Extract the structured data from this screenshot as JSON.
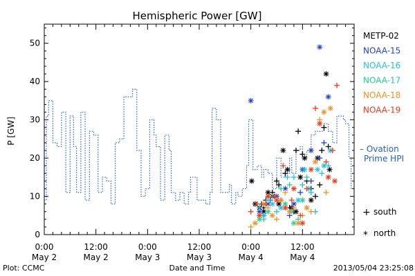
{
  "chart_data": {
    "type": "scatter",
    "title": "Hemispheric Power [GW]",
    "ylabel": "P [GW]",
    "xlabel": "Date and Time",
    "ylim": [
      0,
      55
    ],
    "yticks": [
      0,
      10,
      20,
      30,
      40,
      50
    ],
    "xlim_hours": [
      0,
      72
    ],
    "xticks": [
      {
        "hour": 0,
        "line1": "0:00",
        "line2": "May 2"
      },
      {
        "hour": 12,
        "line1": "12:00",
        "line2": "May 2"
      },
      {
        "hour": 24,
        "line1": "0:00",
        "line2": "May 3"
      },
      {
        "hour": 36,
        "line1": "12:00",
        "line2": "May 3"
      },
      {
        "hour": 48,
        "line1": "0:00",
        "line2": "May 4"
      },
      {
        "hour": 60,
        "line1": "12:00",
        "line2": "May 4"
      }
    ],
    "ovation": {
      "name": "Ovation Prime HPI",
      "label_line1": "– Ovation",
      "label_line2": "Prime HPI",
      "color": "#1f5fc8",
      "points": [
        [
          0,
          9
        ],
        [
          0.5,
          31
        ],
        [
          1,
          35
        ],
        [
          2,
          24
        ],
        [
          3,
          23
        ],
        [
          4,
          32
        ],
        [
          5,
          11
        ],
        [
          6,
          31
        ],
        [
          6.8,
          23
        ],
        [
          7.5,
          11
        ],
        [
          8.5,
          32
        ],
        [
          9.5,
          9
        ],
        [
          10.5,
          27
        ],
        [
          11.5,
          26
        ],
        [
          12.5,
          11
        ],
        [
          13.5,
          15
        ],
        [
          14.5,
          14
        ],
        [
          15.5,
          8
        ],
        [
          16.5,
          24
        ],
        [
          17.5,
          25
        ],
        [
          18.5,
          36
        ],
        [
          20.5,
          38
        ],
        [
          21.5,
          22
        ],
        [
          22.5,
          10
        ],
        [
          23.5,
          12
        ],
        [
          24.5,
          30
        ],
        [
          25.5,
          26
        ],
        [
          26,
          23
        ],
        [
          27,
          9
        ],
        [
          28,
          26
        ],
        [
          29,
          22
        ],
        [
          29.5,
          11
        ],
        [
          30.5,
          9
        ],
        [
          31.5,
          11
        ],
        [
          32.5,
          8
        ],
        [
          33.5,
          11
        ],
        [
          34,
          15
        ],
        [
          35.5,
          9
        ],
        [
          36.5,
          9
        ],
        [
          37.5,
          8
        ],
        [
          38.5,
          11
        ],
        [
          39,
          33
        ],
        [
          40,
          30
        ],
        [
          41,
          11
        ],
        [
          42,
          11
        ],
        [
          43,
          13
        ],
        [
          43.5,
          8
        ],
        [
          44.5,
          11
        ],
        [
          45,
          10
        ],
        [
          46,
          12
        ],
        [
          47,
          18
        ],
        [
          47.5,
          30
        ],
        [
          48.5,
          17
        ],
        [
          49.5,
          18
        ],
        [
          50.5,
          15
        ],
        [
          51,
          17
        ],
        [
          52,
          16
        ],
        [
          53,
          12
        ],
        [
          54,
          20
        ],
        [
          55,
          15
        ],
        [
          56,
          16
        ],
        [
          57,
          20
        ],
        [
          57.5,
          16
        ],
        [
          58.5,
          22
        ],
        [
          59.5,
          23
        ],
        [
          60,
          20
        ],
        [
          61,
          22
        ],
        [
          62,
          26
        ],
        [
          63,
          27
        ],
        [
          64,
          27
        ],
        [
          65,
          29
        ],
        [
          66,
          27
        ],
        [
          67,
          24
        ],
        [
          68,
          31
        ],
        [
          69.5,
          30
        ],
        [
          70,
          29
        ],
        [
          70.8,
          20
        ],
        [
          71.3,
          12
        ]
      ]
    },
    "series": [
      {
        "name": "METP-02",
        "color": "#000000",
        "south": [
          [
            50.5,
            8
          ],
          [
            51,
            7
          ],
          [
            51.5,
            9
          ],
          [
            52,
            10
          ],
          [
            53,
            11
          ],
          [
            54,
            14
          ],
          [
            54.5,
            13
          ],
          [
            56,
            16
          ],
          [
            57,
            7
          ],
          [
            58,
            6
          ],
          [
            58.5,
            22
          ],
          [
            59,
            27
          ],
          [
            60,
            21
          ],
          [
            61,
            14
          ],
          [
            62,
            12
          ],
          [
            63,
            10
          ],
          [
            64,
            13
          ],
          [
            64.5,
            22
          ],
          [
            65,
            28
          ],
          [
            66,
            23
          ]
        ],
        "north": [
          [
            48.2,
            14
          ],
          [
            49,
            8
          ],
          [
            50,
            7
          ],
          [
            51,
            6
          ],
          [
            52,
            11
          ],
          [
            53,
            10
          ],
          [
            54.5,
            8
          ],
          [
            55.5,
            22
          ],
          [
            56.5,
            17
          ],
          [
            57.5,
            7
          ],
          [
            58.5,
            6
          ],
          [
            59.5,
            15
          ],
          [
            60.5,
            20
          ],
          [
            62,
            9
          ],
          [
            63.5,
            20
          ],
          [
            65.5,
            42
          ],
          [
            66.3,
            17
          ]
        ]
      },
      {
        "name": "NOAA-15",
        "color": "#1f3fd0",
        "south": [
          [
            51,
            5
          ],
          [
            52.5,
            9
          ],
          [
            55,
            9
          ],
          [
            57,
            5
          ],
          [
            59.5,
            11
          ],
          [
            62,
            14
          ],
          [
            64,
            20
          ],
          [
            65,
            24
          ]
        ],
        "north": [
          [
            48,
            35
          ],
          [
            50,
            6
          ],
          [
            52,
            8
          ],
          [
            54,
            10
          ],
          [
            56,
            12
          ],
          [
            58,
            8
          ],
          [
            60,
            17
          ],
          [
            62,
            22
          ],
          [
            64,
            49
          ],
          [
            66,
            36
          ]
        ]
      },
      {
        "name": "NOAA-16",
        "color": "#20c0e0",
        "south": [
          [
            50,
            7
          ],
          [
            52,
            9
          ],
          [
            54,
            6
          ],
          [
            56.5,
            15
          ],
          [
            58,
            15
          ],
          [
            60,
            13
          ],
          [
            62,
            11
          ],
          [
            63,
            6
          ],
          [
            64.5,
            16
          ],
          [
            66,
            18
          ]
        ],
        "north": [
          [
            51,
            5
          ],
          [
            53,
            8
          ],
          [
            55,
            7
          ],
          [
            57.5,
            6
          ],
          [
            59,
            9
          ],
          [
            60.5,
            17
          ],
          [
            61.5,
            12
          ],
          [
            63.5,
            17
          ],
          [
            65,
            18
          ],
          [
            66.5,
            22
          ]
        ]
      },
      {
        "name": "NOAA-17",
        "color": "#20d090",
        "south": [
          [
            51,
            4
          ],
          [
            53,
            10
          ],
          [
            55,
            12
          ],
          [
            57,
            13
          ],
          [
            59,
            4
          ],
          [
            61,
            15
          ]
        ],
        "north": [
          [
            50,
            4
          ],
          [
            52,
            6
          ],
          [
            56,
            8
          ],
          [
            58,
            3
          ],
          [
            60,
            9
          ]
        ]
      },
      {
        "name": "NOAA-18",
        "color": "#f09020",
        "south": [
          [
            48,
            2
          ],
          [
            50,
            5
          ],
          [
            52,
            7
          ],
          [
            54,
            4
          ],
          [
            56,
            11
          ],
          [
            58,
            7
          ],
          [
            60,
            5
          ],
          [
            62,
            6
          ],
          [
            64,
            30
          ],
          [
            65.5,
            11
          ]
        ],
        "north": [
          [
            49,
            3
          ],
          [
            51,
            8
          ],
          [
            53,
            5
          ],
          [
            55,
            9
          ],
          [
            57,
            6
          ],
          [
            59,
            3
          ],
          [
            61,
            7
          ],
          [
            63,
            19
          ],
          [
            65,
            32
          ],
          [
            66.5,
            33
          ]
        ]
      },
      {
        "name": "NOAA-19",
        "color": "#f03818",
        "south": [
          [
            48,
            6
          ],
          [
            49.5,
            8
          ],
          [
            51.5,
            8
          ],
          [
            53.5,
            10
          ],
          [
            55.5,
            18
          ],
          [
            57.5,
            9
          ],
          [
            59.5,
            5
          ],
          [
            61,
            12
          ],
          [
            63,
            33
          ],
          [
            65.5,
            19
          ],
          [
            67,
            22
          ],
          [
            68,
            39
          ]
        ],
        "north": [
          [
            50,
            5
          ],
          [
            52,
            10
          ],
          [
            54,
            9
          ],
          [
            56,
            7
          ],
          [
            58,
            12
          ],
          [
            60,
            3
          ],
          [
            62,
            17
          ],
          [
            64,
            29
          ],
          [
            66,
            15
          ],
          [
            67.5,
            14
          ]
        ]
      }
    ],
    "markers": {
      "south_label": "south",
      "north_label": "north",
      "south_symbol": "+",
      "north_symbol": "*"
    },
    "footer": {
      "left": "Plot: CCMC",
      "right": "2013/05/04 23:25:08"
    }
  }
}
